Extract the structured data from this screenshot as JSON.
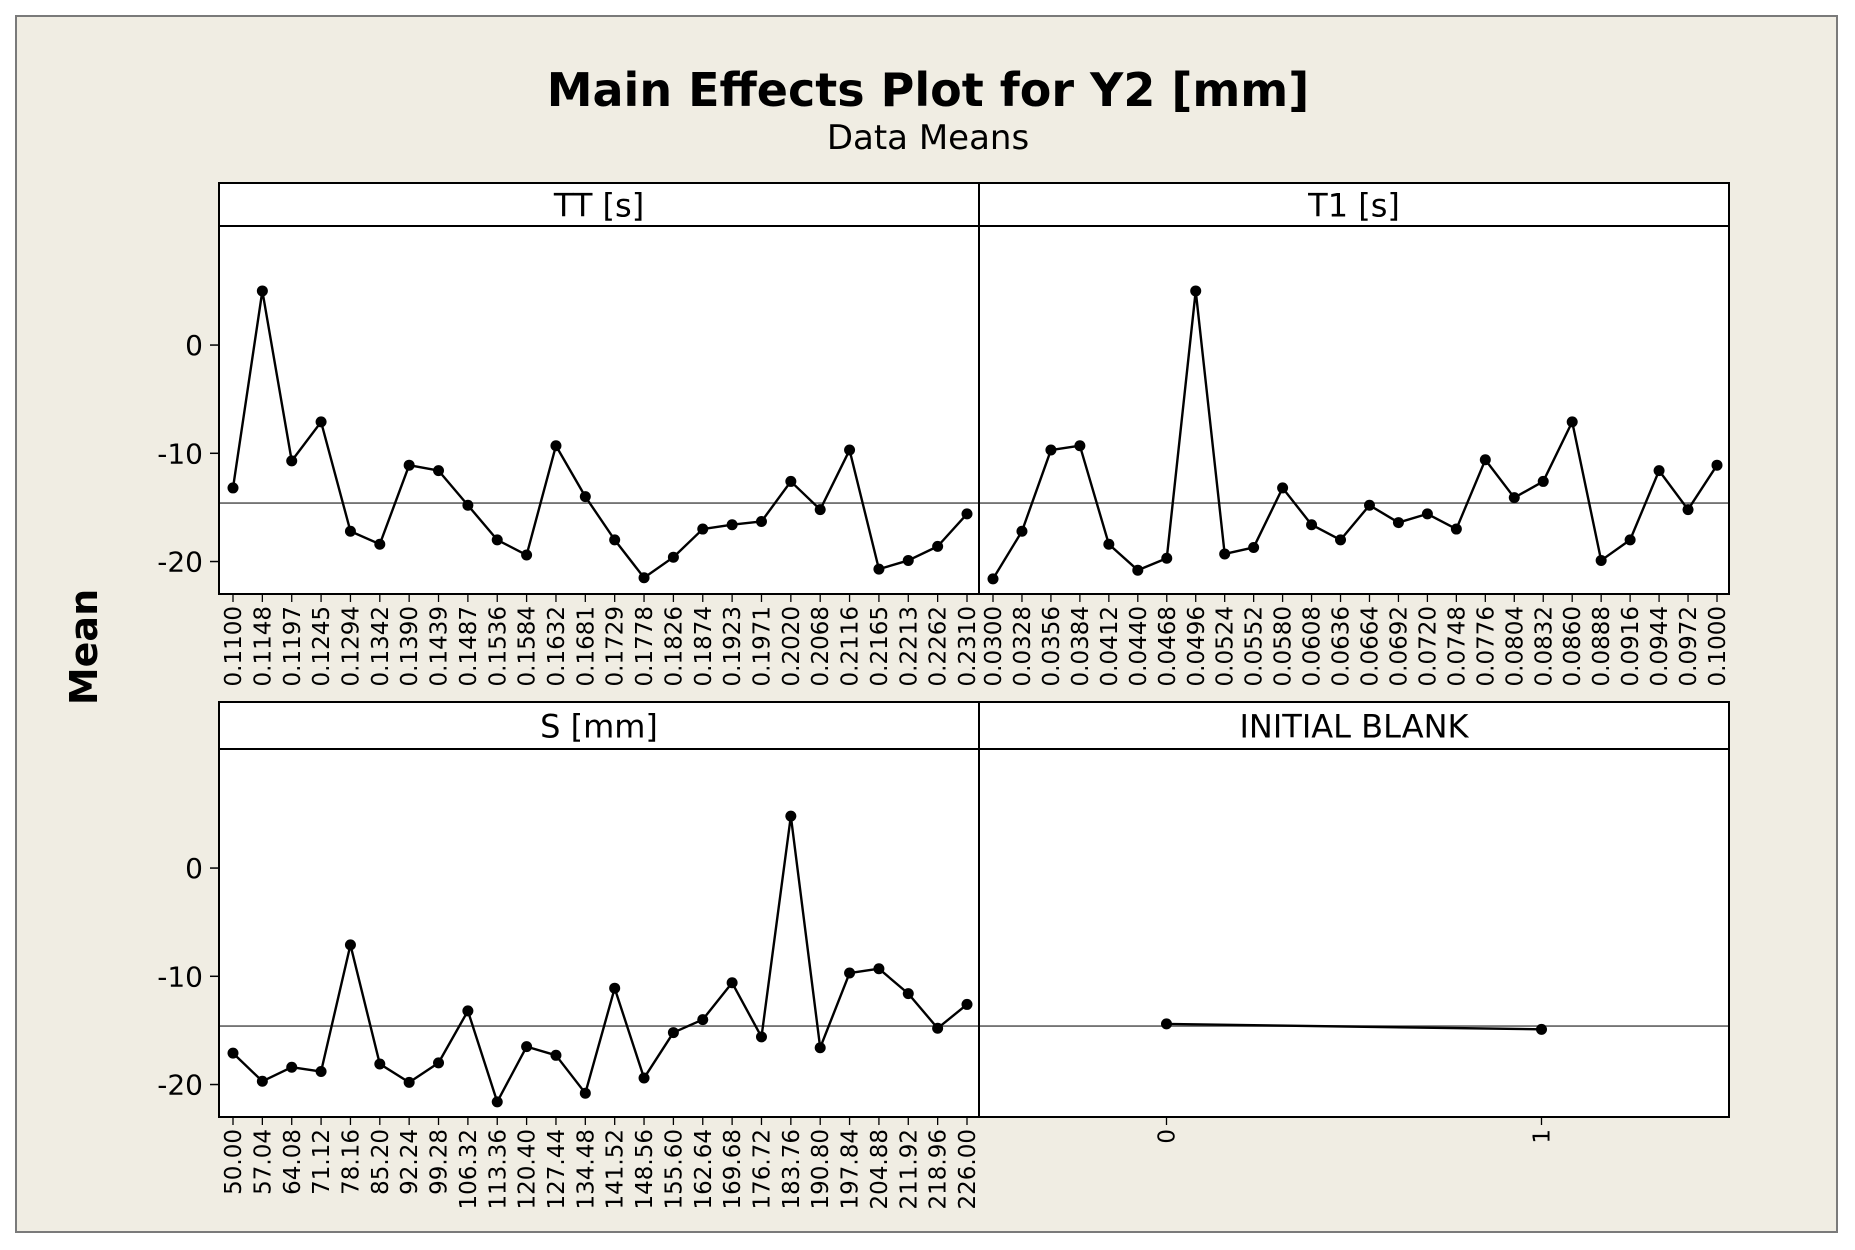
{
  "chart_data": {
    "type": "line",
    "title": "Main Effects Plot for Y2 [mm]",
    "subtitle": "Data Means",
    "ylabel": "Mean",
    "ylim": [
      -23,
      11
    ],
    "yticks": [
      0,
      -10,
      -20
    ],
    "grand_mean": -14.6,
    "panels": [
      {
        "name": "TT [s]",
        "x": [
          "0.1100",
          "0.1148",
          "0.1197",
          "0.1245",
          "0.1294",
          "0.1342",
          "0.1390",
          "0.1439",
          "0.1487",
          "0.1536",
          "0.1584",
          "0.1632",
          "0.1681",
          "0.1729",
          "0.1778",
          "0.1826",
          "0.1874",
          "0.1923",
          "0.1971",
          "0.2020",
          "0.2068",
          "0.2116",
          "0.2165",
          "0.2213",
          "0.2262",
          "0.2310"
        ],
        "values": [
          -13.2,
          5.0,
          -10.7,
          -7.1,
          -17.2,
          -18.4,
          -11.1,
          -11.6,
          -14.8,
          -18.0,
          -19.4,
          -9.3,
          -14.0,
          -18.0,
          -21.5,
          -19.6,
          -17.0,
          -16.6,
          -16.3,
          -12.6,
          -15.2,
          -9.7,
          -20.7,
          -19.9,
          -18.6,
          -15.6
        ]
      },
      {
        "name": "T1 [s]",
        "x": [
          "0.0300",
          "0.0328",
          "0.0356",
          "0.0384",
          "0.0412",
          "0.0440",
          "0.0468",
          "0.0496",
          "0.0524",
          "0.0552",
          "0.0580",
          "0.0608",
          "0.0636",
          "0.0664",
          "0.0692",
          "0.0720",
          "0.0748",
          "0.0776",
          "0.0804",
          "0.0832",
          "0.0860",
          "0.0888",
          "0.0916",
          "0.0944",
          "0.0972",
          "0.1000"
        ],
        "values": [
          -21.6,
          -17.2,
          -9.7,
          -9.3,
          -18.4,
          -20.8,
          -19.7,
          5.0,
          -19.3,
          -18.7,
          -13.2,
          -16.6,
          -18.0,
          -14.8,
          -16.4,
          -15.6,
          -17.0,
          -10.6,
          -14.1,
          -12.6,
          -7.1,
          -19.9,
          -18.0,
          -11.6,
          -15.2,
          -11.1
        ]
      },
      {
        "name": "S [mm]",
        "x": [
          "50.00",
          "57.04",
          "64.08",
          "71.12",
          "78.16",
          "85.20",
          "92.24",
          "99.28",
          "106.32",
          "113.36",
          "120.40",
          "127.44",
          "134.48",
          "141.52",
          "148.56",
          "155.60",
          "162.64",
          "169.68",
          "176.72",
          "183.76",
          "190.80",
          "197.84",
          "204.88",
          "211.92",
          "218.96",
          "226.00"
        ],
        "values": [
          -17.1,
          -19.7,
          -18.4,
          -18.8,
          -7.1,
          -18.1,
          -19.8,
          -18.0,
          -13.2,
          -21.6,
          -16.5,
          -17.3,
          -20.8,
          -11.1,
          -19.4,
          -15.2,
          -14.0,
          -10.6,
          -15.6,
          4.8,
          -16.6,
          -9.7,
          -9.3,
          -11.6,
          -14.8,
          -12.6
        ]
      },
      {
        "name": "INITIAL BLANK",
        "x": [
          "0",
          "1"
        ],
        "values": [
          -14.4,
          -14.9
        ]
      }
    ]
  },
  "colors": {
    "background": "#f0ede3",
    "plot": "#ffffff",
    "line": "#000000",
    "mean_line": "#606060"
  }
}
